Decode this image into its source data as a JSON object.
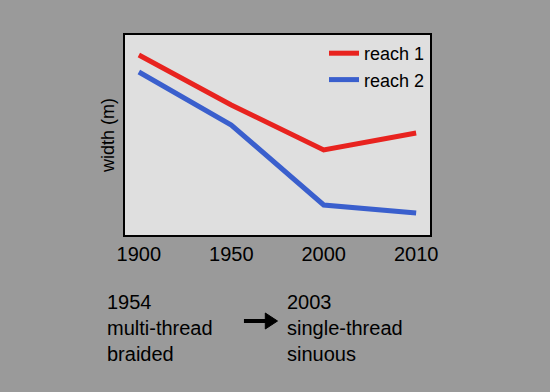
{
  "chart_data": {
    "type": "line",
    "y_label": "width (m)",
    "categories": [
      "1900",
      "1950",
      "2000",
      "2010"
    ],
    "series": [
      {
        "name": "reach 1",
        "color": "#e8231f",
        "values": [
          90,
          65,
          42.5,
          51
        ]
      },
      {
        "name": "reach 2",
        "color": "#3a5fcd",
        "values": [
          81.5,
          55,
          15,
          11
        ]
      }
    ],
    "ylim": [
      0,
      100
    ],
    "tick_labels": "x",
    "grid": false,
    "legend": "top right",
    "annotations": [
      {
        "lines": [
          "1954",
          "multi-thread",
          "braided"
        ]
      },
      {
        "lines": [
          "2003",
          "single-thread",
          "sinuous"
        ]
      }
    ]
  }
}
